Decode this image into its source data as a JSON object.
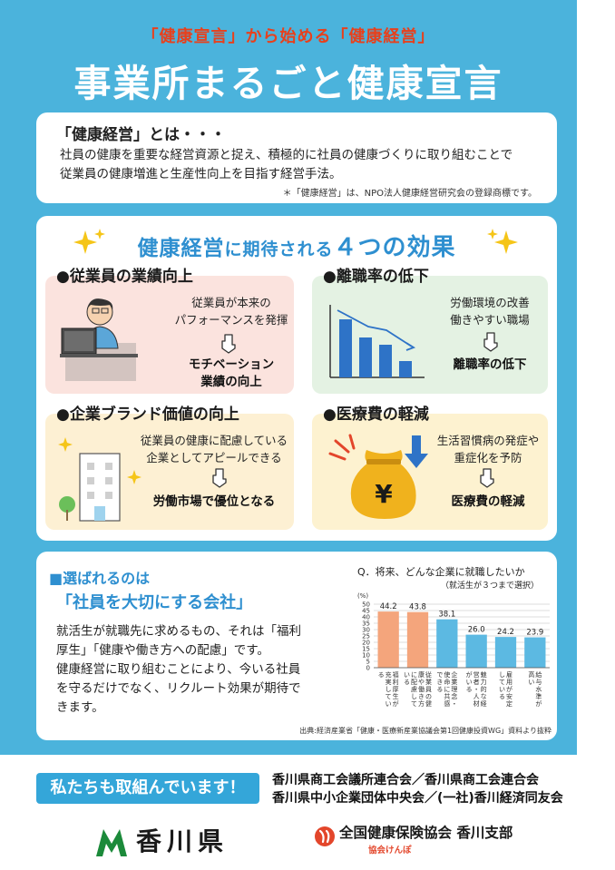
{
  "header": {
    "subtitle": "「健康宣言」から始める「健康経営」",
    "title": "事業所まるごと健康宣言"
  },
  "definition": {
    "heading": "「健康経営」とは・・・",
    "line1": "社員の健康を重要な経営資源と捉え、積極的に社員の健康づくりに取り組むことで",
    "line2": "従業員の健康増進と生産性向上を目指す経営手法。",
    "note": "＊「健康経営」は、NPO法人健康経営研究会の登録商標です。"
  },
  "effects": {
    "title_a": "健康経営",
    "title_b": "に期待される",
    "title_c": "４つの効果",
    "items": [
      {
        "heading": "●従業員の業績向上",
        "desc1": "従業員が本来の",
        "desc2": "パフォーマンスを発揮",
        "result1": "モチベーション",
        "result2": "業績の向上",
        "color": "#fbe3de"
      },
      {
        "heading": "●離職率の低下",
        "desc1": "労働環境の改善",
        "desc2": "働きやすい職場",
        "result1": "離職率の低下",
        "result2": "",
        "color": "#e4f2e3"
      },
      {
        "heading": "●企業ブランド価値の向上",
        "desc1": "従業員の健康に配慮している",
        "desc2": "企業としてアピールできる",
        "result1": "労働市場で優位となる",
        "result2": "",
        "color": "#fdf0d3"
      },
      {
        "heading": "●医療費の軽減",
        "desc1": "生活習慣病の発症や",
        "desc2": "重症化を予防",
        "result1": "医療費の軽減",
        "result2": "",
        "color": "#fdf2d0"
      }
    ]
  },
  "selection": {
    "heading1": "■選ばれるのは",
    "heading2": "「社員を大切にする会社」",
    "body1": "就活生が就職先に求めるもの、それは「福利",
    "body2": "厚生」「健康や働き方への配慮」です。",
    "body3": "健康経営に取り組むことにより、今いる社員",
    "body4": "を守るだけでなく、リクルート効果が期待で",
    "body5": "きます。"
  },
  "chart_data": {
    "type": "bar",
    "title": "Q．将来、どんな企業に就職したいか",
    "subtitle": "（就活生が３つまで選択）",
    "ylabel": "(%)",
    "ylim": [
      0,
      50
    ],
    "yticks": [
      "50",
      "45",
      "40",
      "35",
      "30",
      "25",
      "20",
      "15",
      "10",
      "5",
      "0"
    ],
    "categories": [
      "福利厚生が充実している",
      "従業員の健康や働き方に配慮している",
      "企業理念・使命に共感できる",
      "魅力的な経営者・人材がいる",
      "雇用が安定している",
      "給与水準が高い"
    ],
    "values": [
      44.2,
      43.8,
      38.1,
      26.0,
      24.2,
      23.9
    ],
    "value_labels": [
      "44.2",
      "43.8",
      "38.1",
      "26.0",
      "24.2",
      "23.9"
    ],
    "colors": [
      "#f4a57c",
      "#f4a57c",
      "#5cb9e2",
      "#5cb9e2",
      "#5cb9e2",
      "#5cb9e2"
    ],
    "source": "出典:経済産業省「健康・医療新産業協議会第1回健康投資WG」資料より抜粋"
  },
  "footer": {
    "banner": "私たちも取組んでいます！",
    "org1": "香川県商工会議所連合会／香川県商工会連合会",
    "org2": "香川県中小企業団体中央会／(一社)香川経済同友会",
    "pref": "香川県",
    "kyokai": "全国健康保険協会 香川支部",
    "kyokai_sub": "協会けんぽ"
  }
}
